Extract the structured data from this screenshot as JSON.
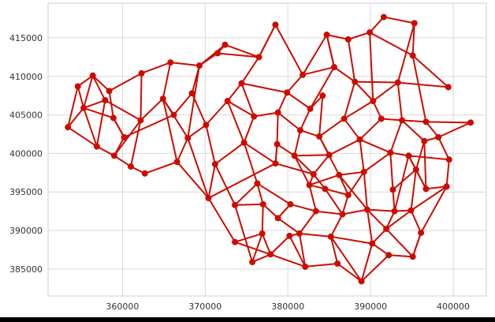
{
  "chart_data": {
    "type": "network",
    "title": "",
    "xlabel": "",
    "ylabel": "",
    "xlim": [
      351000,
      404000
    ],
    "ylim": [
      381500,
      419500
    ],
    "xticks": [
      360000,
      370000,
      380000,
      390000,
      400000
    ],
    "yticks": [
      385000,
      390000,
      395000,
      400000,
      405000,
      410000,
      415000
    ],
    "xtick_labels": [
      "360000",
      "370000",
      "380000",
      "390000",
      "400000"
    ],
    "ytick_labels": [
      "385000",
      "390000",
      "395000",
      "400000",
      "405000",
      "410000",
      "415000"
    ],
    "grid": true,
    "color": "#cc0c00",
    "nodes": [
      [
        353400,
        403400
      ],
      [
        354600,
        408700
      ],
      [
        355300,
        405900
      ],
      [
        356400,
        410100
      ],
      [
        357900,
        406900
      ],
      [
        356900,
        400900
      ],
      [
        359000,
        399700
      ],
      [
        361000,
        398300
      ],
      [
        362200,
        404300
      ],
      [
        362300,
        410400
      ],
      [
        362700,
        397400
      ],
      [
        365800,
        411800
      ],
      [
        364900,
        407100
      ],
      [
        366600,
        398900
      ],
      [
        367900,
        402000
      ],
      [
        369300,
        411400
      ],
      [
        371500,
        413000
      ],
      [
        372400,
        414100
      ],
      [
        370400,
        394200
      ],
      [
        373600,
        388500
      ],
      [
        376500,
        412500
      ],
      [
        378500,
        416700
      ],
      [
        381800,
        410200
      ],
      [
        384200,
        407500
      ],
      [
        384700,
        415400
      ],
      [
        387300,
        414800
      ],
      [
        389900,
        415700
      ],
      [
        391600,
        417700
      ],
      [
        395300,
        416900
      ],
      [
        395100,
        412700
      ],
      [
        399400,
        408600
      ],
      [
        396700,
        404100
      ],
      [
        398200,
        402100
      ],
      [
        402100,
        404000
      ],
      [
        399500,
        399200
      ],
      [
        399200,
        395700
      ],
      [
        396100,
        389700
      ],
      [
        395100,
        386600
      ],
      [
        392200,
        386800
      ],
      [
        388900,
        383400
      ],
      [
        386000,
        385700
      ],
      [
        382100,
        385300
      ],
      [
        377900,
        386900
      ],
      [
        380200,
        389300
      ],
      [
        378500,
        398700
      ],
      [
        383100,
        397300
      ],
      [
        384500,
        395400
      ],
      [
        387300,
        394600
      ],
      [
        385000,
        399800
      ],
      [
        388700,
        401800
      ],
      [
        391300,
        404500
      ],
      [
        392400,
        400100
      ],
      [
        389200,
        397600
      ],
      [
        386600,
        392100
      ],
      [
        383400,
        392500
      ],
      [
        380300,
        393400
      ],
      [
        376300,
        396100
      ],
      [
        374700,
        401400
      ],
      [
        375900,
        404800
      ],
      [
        374400,
        409100
      ],
      [
        378800,
        405300
      ],
      [
        381500,
        403000
      ],
      [
        383800,
        402200
      ],
      [
        386800,
        404500
      ],
      [
        390300,
        406800
      ],
      [
        393300,
        409200
      ],
      [
        392700,
        395300
      ],
      [
        395500,
        397900
      ],
      [
        394900,
        392600
      ],
      [
        391900,
        390200
      ],
      [
        390200,
        388300
      ],
      [
        385200,
        389200
      ],
      [
        381400,
        389600
      ],
      [
        378800,
        391600
      ],
      [
        377000,
        393400
      ],
      [
        376900,
        389600
      ],
      [
        378700,
        401200
      ],
      [
        380800,
        399700
      ],
      [
        382600,
        395900
      ],
      [
        386200,
        397200
      ],
      [
        389600,
        392700
      ],
      [
        392900,
        392500
      ],
      [
        394600,
        399700
      ],
      [
        396700,
        395400
      ],
      [
        396500,
        401600
      ],
      [
        393800,
        404300
      ],
      [
        388100,
        409300
      ],
      [
        385600,
        411200
      ],
      [
        382700,
        405800
      ],
      [
        379900,
        407900
      ],
      [
        372700,
        406800
      ],
      [
        370100,
        403700
      ],
      [
        368400,
        407800
      ],
      [
        366200,
        405000
      ],
      [
        360200,
        402100
      ],
      [
        358900,
        404600
      ],
      [
        358400,
        408100
      ],
      [
        371200,
        398600
      ],
      [
        373600,
        393300
      ],
      [
        375700,
        385900
      ]
    ],
    "edges": [
      [
        0,
        1
      ],
      [
        0,
        2
      ],
      [
        0,
        5
      ],
      [
        1,
        2
      ],
      [
        1,
        3
      ],
      [
        2,
        3
      ],
      [
        2,
        4
      ],
      [
        3,
        4
      ],
      [
        2,
        5
      ],
      [
        4,
        5
      ],
      [
        5,
        6
      ],
      [
        6,
        7
      ],
      [
        4,
        8
      ],
      [
        6,
        8
      ],
      [
        7,
        8
      ],
      [
        8,
        9
      ],
      [
        9,
        11
      ],
      [
        8,
        12
      ],
      [
        11,
        12
      ],
      [
        7,
        10
      ],
      [
        10,
        13
      ],
      [
        12,
        13
      ],
      [
        13,
        14
      ],
      [
        11,
        15
      ],
      [
        15,
        16
      ],
      [
        16,
        17
      ],
      [
        14,
        15
      ],
      [
        12,
        14
      ],
      [
        17,
        20
      ],
      [
        16,
        20
      ],
      [
        20,
        21
      ],
      [
        21,
        22
      ],
      [
        22,
        24
      ],
      [
        24,
        25
      ],
      [
        25,
        26
      ],
      [
        26,
        27
      ],
      [
        27,
        28
      ],
      [
        28,
        29
      ],
      [
        26,
        29
      ],
      [
        29,
        30
      ],
      [
        29,
        31
      ],
      [
        31,
        32
      ],
      [
        32,
        33
      ],
      [
        32,
        34
      ],
      [
        34,
        35
      ],
      [
        35,
        36
      ],
      [
        36,
        37
      ],
      [
        37,
        38
      ],
      [
        38,
        39
      ],
      [
        39,
        40
      ],
      [
        40,
        41
      ],
      [
        41,
        42
      ],
      [
        42,
        43
      ],
      [
        19,
        42
      ],
      [
        18,
        19
      ],
      [
        13,
        18
      ],
      [
        14,
        18
      ],
      [
        43,
        41
      ],
      [
        18,
        44
      ],
      [
        44,
        45
      ],
      [
        45,
        46
      ],
      [
        46,
        47
      ],
      [
        45,
        48
      ],
      [
        48,
        49
      ],
      [
        49,
        50
      ],
      [
        49,
        51
      ],
      [
        51,
        52
      ],
      [
        47,
        52
      ],
      [
        46,
        53
      ],
      [
        53,
        54
      ],
      [
        54,
        55
      ],
      [
        55,
        56
      ],
      [
        56,
        57
      ],
      [
        57,
        58
      ],
      [
        58,
        59
      ],
      [
        20,
        59
      ],
      [
        58,
        60
      ],
      [
        60,
        61
      ],
      [
        61,
        62
      ],
      [
        62,
        63
      ],
      [
        63,
        64
      ],
      [
        64,
        65
      ],
      [
        50,
        64
      ],
      [
        51,
        66
      ],
      [
        66,
        67
      ],
      [
        67,
        68
      ],
      [
        68,
        69
      ],
      [
        69,
        70
      ],
      [
        70,
        71
      ],
      [
        71,
        72
      ],
      [
        72,
        73
      ],
      [
        73,
        74
      ],
      [
        74,
        75
      ],
      [
        19,
        75
      ],
      [
        42,
        75
      ],
      [
        44,
        76
      ],
      [
        76,
        77
      ],
      [
        77,
        78
      ],
      [
        78,
        79
      ],
      [
        79,
        80
      ],
      [
        80,
        81
      ],
      [
        81,
        82
      ],
      [
        82,
        83
      ],
      [
        83,
        84
      ],
      [
        84,
        85
      ],
      [
        65,
        85
      ],
      [
        64,
        86
      ],
      [
        86,
        87
      ],
      [
        87,
        88
      ],
      [
        88,
        89
      ],
      [
        89,
        59
      ],
      [
        57,
        90
      ],
      [
        90,
        91
      ],
      [
        91,
        92
      ],
      [
        92,
        93
      ],
      [
        93,
        94
      ],
      [
        94,
        95
      ],
      [
        95,
        96
      ],
      [
        18,
        97
      ],
      [
        97,
        98
      ],
      [
        98,
        99
      ],
      [
        99,
        42
      ],
      [
        56,
        98
      ],
      [
        57,
        97
      ],
      [
        22,
        87
      ],
      [
        23,
        88
      ],
      [
        23,
        62
      ],
      [
        24,
        87
      ],
      [
        25,
        86
      ],
      [
        26,
        64
      ],
      [
        28,
        65
      ],
      [
        30,
        65
      ],
      [
        31,
        85
      ],
      [
        32,
        84
      ],
      [
        33,
        31
      ],
      [
        34,
        82
      ],
      [
        35,
        83
      ],
      [
        36,
        68
      ],
      [
        37,
        69
      ],
      [
        38,
        70
      ],
      [
        39,
        71
      ],
      [
        40,
        71
      ],
      [
        41,
        72
      ],
      [
        43,
        72
      ],
      [
        44,
        57
      ],
      [
        45,
        77
      ],
      [
        46,
        78
      ],
      [
        47,
        79
      ],
      [
        48,
        62
      ],
      [
        49,
        63
      ],
      [
        50,
        85
      ],
      [
        51,
        82
      ],
      [
        52,
        80
      ],
      [
        53,
        71
      ],
      [
        54,
        72
      ],
      [
        55,
        73
      ],
      [
        56,
        74
      ],
      [
        60,
        89
      ],
      [
        61,
        88
      ],
      [
        62,
        79
      ],
      [
        63,
        86
      ],
      [
        66,
        81
      ],
      [
        67,
        82
      ],
      [
        68,
        81
      ],
      [
        69,
        80
      ],
      [
        70,
        80
      ],
      [
        73,
        55
      ],
      [
        74,
        98
      ],
      [
        75,
        99
      ],
      [
        76,
        60
      ],
      [
        77,
        61
      ],
      [
        78,
        54
      ],
      [
        79,
        52
      ],
      [
        80,
        53
      ],
      [
        81,
        69
      ],
      [
        84,
        67
      ],
      [
        85,
        51
      ],
      [
        86,
        65
      ],
      [
        87,
        24
      ],
      [
        89,
        22
      ],
      [
        90,
        59
      ],
      [
        91,
        14
      ],
      [
        92,
        15
      ],
      [
        93,
        12
      ],
      [
        94,
        6
      ],
      [
        95,
        2
      ],
      [
        96,
        3
      ],
      [
        96,
        9
      ],
      [
        95,
        94
      ],
      [
        90,
        58
      ],
      [
        91,
        97
      ],
      [
        21,
        20
      ],
      [
        17,
        15
      ],
      [
        76,
        44
      ],
      [
        47,
        53
      ],
      [
        45,
        78
      ],
      [
        48,
        77
      ],
      [
        49,
        52
      ],
      [
        83,
        67
      ],
      [
        35,
        68
      ],
      [
        37,
        36
      ],
      [
        39,
        70
      ]
    ]
  }
}
